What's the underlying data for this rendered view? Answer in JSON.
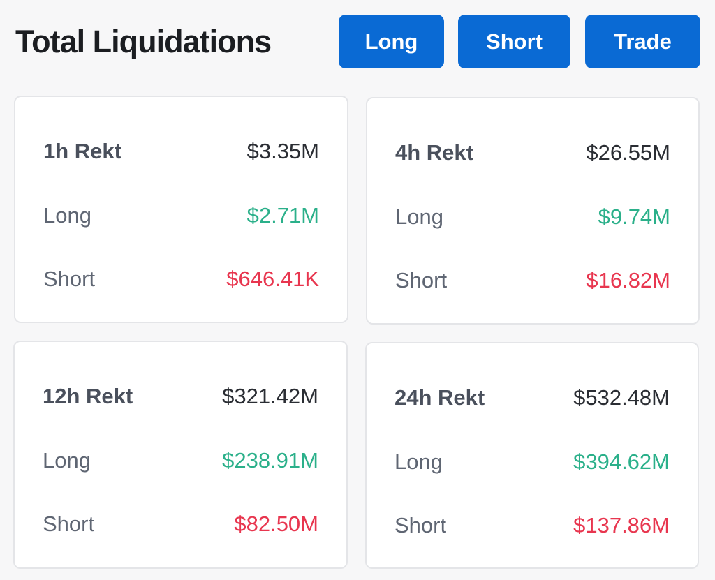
{
  "header": {
    "title": "Total Liquidations",
    "buttons": {
      "long": "Long",
      "short": "Short",
      "trade": "Trade"
    }
  },
  "colors": {
    "accent": "#0a6ad4",
    "long": "#2bb08a",
    "short": "#e8364f"
  },
  "cards": [
    {
      "label": "1h Rekt",
      "total": "$3.35M",
      "long_label": "Long",
      "long": "$2.71M",
      "short_label": "Short",
      "short": "$646.41K"
    },
    {
      "label": "4h Rekt",
      "total": "$26.55M",
      "long_label": "Long",
      "long": "$9.74M",
      "short_label": "Short",
      "short": "$16.82M"
    },
    {
      "label": "12h Rekt",
      "total": "$321.42M",
      "long_label": "Long",
      "long": "$238.91M",
      "short_label": "Short",
      "short": "$82.50M"
    },
    {
      "label": "24h Rekt",
      "total": "$532.48M",
      "long_label": "Long",
      "long": "$394.62M",
      "short_label": "Short",
      "short": "$137.86M"
    }
  ]
}
